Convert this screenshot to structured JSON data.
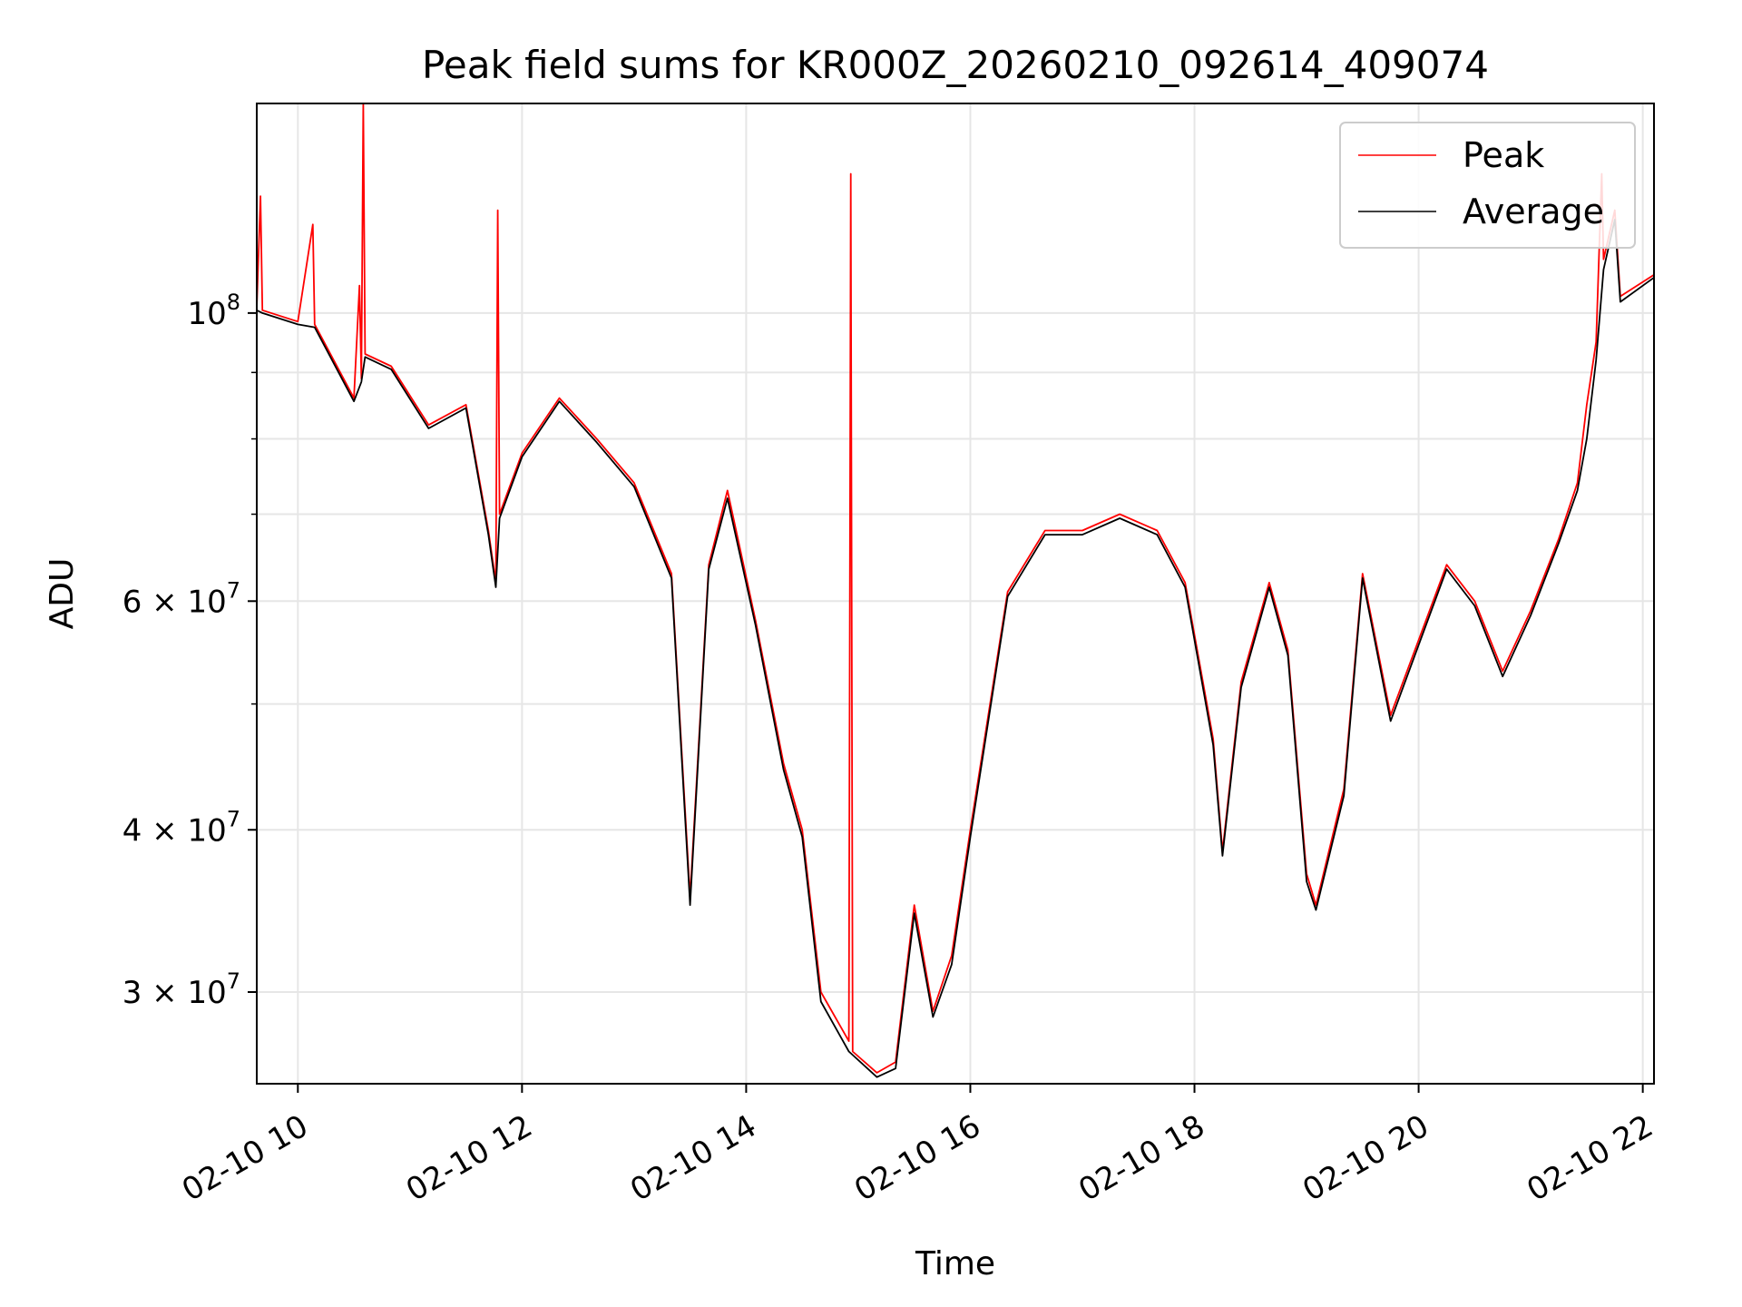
{
  "chart_data": {
    "type": "line",
    "title": "Peak field sums for KR000Z_20260210_092614_409074",
    "xlabel": "Time",
    "ylabel": "ADU",
    "y_scale": "log",
    "grid": true,
    "legend_position": "top-right",
    "xlim": [
      "2026-02-10 09:38",
      "2026-02-10 22:06"
    ],
    "ylim": [
      25500000,
      145000000
    ],
    "x_ticks": [
      {
        "t": "2026-02-10 10:00",
        "label": "02-10 10"
      },
      {
        "t": "2026-02-10 12:00",
        "label": "02-10 12"
      },
      {
        "t": "2026-02-10 14:00",
        "label": "02-10 14"
      },
      {
        "t": "2026-02-10 16:00",
        "label": "02-10 16"
      },
      {
        "t": "2026-02-10 18:00",
        "label": "02-10 18"
      },
      {
        "t": "2026-02-10 20:00",
        "label": "02-10 20"
      },
      {
        "t": "2026-02-10 22:00",
        "label": "02-10 22"
      }
    ],
    "y_ticks": [
      {
        "v": 100000000,
        "base": "10",
        "exp": "8"
      },
      {
        "v": 60000000,
        "mant": "6",
        "base": "10",
        "exp": "7"
      },
      {
        "v": 40000000,
        "mant": "4",
        "base": "10",
        "exp": "7"
      },
      {
        "v": 30000000,
        "mant": "3",
        "base": "10",
        "exp": "7"
      }
    ],
    "y_minor_ticks": [
      90000000,
      80000000,
      70000000,
      50000000
    ],
    "series": [
      {
        "name": "Peak",
        "color": "#ff0000",
        "points": [
          [
            "2026-02-10 09:38",
            101000000
          ],
          [
            "2026-02-10 09:40",
            123000000
          ],
          [
            "2026-02-10 09:41",
            100500000
          ],
          [
            "2026-02-10 10:00",
            98500000
          ],
          [
            "2026-02-10 10:08",
            117000000
          ],
          [
            "2026-02-10 10:09",
            98000000
          ],
          [
            "2026-02-10 10:30",
            86000000
          ],
          [
            "2026-02-10 10:33",
            105000000
          ],
          [
            "2026-02-10 10:34",
            89000000
          ],
          [
            "2026-02-10 10:35",
            150000000
          ],
          [
            "2026-02-10 10:36",
            93000000
          ],
          [
            "2026-02-10 10:50",
            91000000
          ],
          [
            "2026-02-10 11:10",
            82000000
          ],
          [
            "2026-02-10 11:30",
            85000000
          ],
          [
            "2026-02-10 11:42",
            68000000
          ],
          [
            "2026-02-10 11:46",
            62000000
          ],
          [
            "2026-02-10 11:47",
            120000000
          ],
          [
            "2026-02-10 11:48",
            70000000
          ],
          [
            "2026-02-10 12:00",
            78000000
          ],
          [
            "2026-02-10 12:20",
            86000000
          ],
          [
            "2026-02-10 12:40",
            80000000
          ],
          [
            "2026-02-10 13:00",
            74000000
          ],
          [
            "2026-02-10 13:20",
            63000000
          ],
          [
            "2026-02-10 13:30",
            35500000
          ],
          [
            "2026-02-10 13:40",
            64000000
          ],
          [
            "2026-02-10 13:50",
            73000000
          ],
          [
            "2026-02-10 14:05",
            58000000
          ],
          [
            "2026-02-10 14:20",
            45000000
          ],
          [
            "2026-02-10 14:30",
            40000000
          ],
          [
            "2026-02-10 14:40",
            30000000
          ],
          [
            "2026-02-10 14:55",
            27500000
          ],
          [
            "2026-02-10 14:56",
            128000000
          ],
          [
            "2026-02-10 14:57",
            27000000
          ],
          [
            "2026-02-10 15:10",
            26000000
          ],
          [
            "2026-02-10 15:20",
            26500000
          ],
          [
            "2026-02-10 15:30",
            35000000
          ],
          [
            "2026-02-10 15:40",
            29000000
          ],
          [
            "2026-02-10 15:50",
            32000000
          ],
          [
            "2026-02-10 16:00",
            40000000
          ],
          [
            "2026-02-10 16:20",
            61000000
          ],
          [
            "2026-02-10 16:40",
            68000000
          ],
          [
            "2026-02-10 17:00",
            68000000
          ],
          [
            "2026-02-10 17:20",
            70000000
          ],
          [
            "2026-02-10 17:40",
            68000000
          ],
          [
            "2026-02-10 17:55",
            62000000
          ],
          [
            "2026-02-10 18:10",
            47000000
          ],
          [
            "2026-02-10 18:15",
            38500000
          ],
          [
            "2026-02-10 18:25",
            52000000
          ],
          [
            "2026-02-10 18:40",
            62000000
          ],
          [
            "2026-02-10 18:50",
            55000000
          ],
          [
            "2026-02-10 19:00",
            37000000
          ],
          [
            "2026-02-10 19:05",
            35000000
          ],
          [
            "2026-02-10 19:20",
            43000000
          ],
          [
            "2026-02-10 19:30",
            63000000
          ],
          [
            "2026-02-10 19:45",
            49000000
          ],
          [
            "2026-02-10 20:00",
            56000000
          ],
          [
            "2026-02-10 20:15",
            64000000
          ],
          [
            "2026-02-10 20:30",
            60000000
          ],
          [
            "2026-02-10 20:45",
            53000000
          ],
          [
            "2026-02-10 21:00",
            59000000
          ],
          [
            "2026-02-10 21:15",
            67000000
          ],
          [
            "2026-02-10 21:25",
            74000000
          ],
          [
            "2026-02-10 21:30",
            85000000
          ],
          [
            "2026-02-10 21:35",
            95000000
          ],
          [
            "2026-02-10 21:38",
            128000000
          ],
          [
            "2026-02-10 21:39",
            110000000
          ],
          [
            "2026-02-10 21:45",
            120000000
          ],
          [
            "2026-02-10 21:48",
            103000000
          ],
          [
            "2026-02-10 22:06",
            107000000
          ]
        ]
      },
      {
        "name": "Average",
        "color": "#000000",
        "points": [
          [
            "2026-02-10 09:38",
            100500000
          ],
          [
            "2026-02-10 09:41",
            100000000
          ],
          [
            "2026-02-10 10:00",
            98000000
          ],
          [
            "2026-02-10 10:09",
            97500000
          ],
          [
            "2026-02-10 10:30",
            85500000
          ],
          [
            "2026-02-10 10:34",
            88500000
          ],
          [
            "2026-02-10 10:36",
            92500000
          ],
          [
            "2026-02-10 10:50",
            90500000
          ],
          [
            "2026-02-10 11:10",
            81500000
          ],
          [
            "2026-02-10 11:30",
            84500000
          ],
          [
            "2026-02-10 11:42",
            67500000
          ],
          [
            "2026-02-10 11:46",
            61500000
          ],
          [
            "2026-02-10 11:48",
            69500000
          ],
          [
            "2026-02-10 12:00",
            77500000
          ],
          [
            "2026-02-10 12:20",
            85500000
          ],
          [
            "2026-02-10 12:40",
            79500000
          ],
          [
            "2026-02-10 13:00",
            73500000
          ],
          [
            "2026-02-10 13:20",
            62500000
          ],
          [
            "2026-02-10 13:30",
            35000000
          ],
          [
            "2026-02-10 13:40",
            63500000
          ],
          [
            "2026-02-10 13:50",
            72000000
          ],
          [
            "2026-02-10 14:05",
            57500000
          ],
          [
            "2026-02-10 14:20",
            44500000
          ],
          [
            "2026-02-10 14:30",
            39500000
          ],
          [
            "2026-02-10 14:40",
            29500000
          ],
          [
            "2026-02-10 14:55",
            27000000
          ],
          [
            "2026-02-10 15:10",
            25800000
          ],
          [
            "2026-02-10 15:20",
            26200000
          ],
          [
            "2026-02-10 15:30",
            34500000
          ],
          [
            "2026-02-10 15:40",
            28700000
          ],
          [
            "2026-02-10 15:50",
            31500000
          ],
          [
            "2026-02-10 16:00",
            39500000
          ],
          [
            "2026-02-10 16:20",
            60500000
          ],
          [
            "2026-02-10 16:40",
            67500000
          ],
          [
            "2026-02-10 17:00",
            67500000
          ],
          [
            "2026-02-10 17:20",
            69500000
          ],
          [
            "2026-02-10 17:40",
            67500000
          ],
          [
            "2026-02-10 17:55",
            61500000
          ],
          [
            "2026-02-10 18:10",
            46500000
          ],
          [
            "2026-02-10 18:15",
            38200000
          ],
          [
            "2026-02-10 18:25",
            51500000
          ],
          [
            "2026-02-10 18:40",
            61500000
          ],
          [
            "2026-02-10 18:50",
            54500000
          ],
          [
            "2026-02-10 19:00",
            36500000
          ],
          [
            "2026-02-10 19:05",
            34700000
          ],
          [
            "2026-02-10 19:20",
            42500000
          ],
          [
            "2026-02-10 19:30",
            62500000
          ],
          [
            "2026-02-10 19:45",
            48500000
          ],
          [
            "2026-02-10 20:00",
            55500000
          ],
          [
            "2026-02-10 20:15",
            63500000
          ],
          [
            "2026-02-10 20:30",
            59500000
          ],
          [
            "2026-02-10 20:45",
            52500000
          ],
          [
            "2026-02-10 21:00",
            58500000
          ],
          [
            "2026-02-10 21:15",
            66500000
          ],
          [
            "2026-02-10 21:25",
            73000000
          ],
          [
            "2026-02-10 21:30",
            80000000
          ],
          [
            "2026-02-10 21:35",
            92000000
          ],
          [
            "2026-02-10 21:39",
            108000000
          ],
          [
            "2026-02-10 21:45",
            118000000
          ],
          [
            "2026-02-10 21:48",
            102000000
          ],
          [
            "2026-02-10 22:06",
            106500000
          ]
        ]
      }
    ]
  }
}
